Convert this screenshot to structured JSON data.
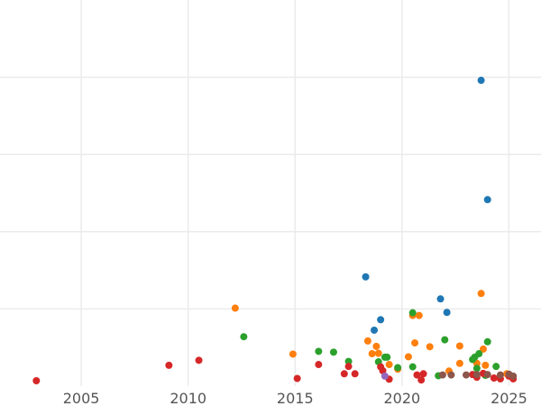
{
  "chart_data": {
    "type": "scatter",
    "title": "",
    "xlabel": "",
    "ylabel": "",
    "grid": true,
    "legend": "none",
    "xlim": [
      2001.2,
      2026.5
    ],
    "ylim": [
      0,
      100
    ],
    "x_ticks": [
      2005,
      2010,
      2015,
      2020,
      2025
    ],
    "x_tick_labels": [
      "2005",
      "2010",
      "2015",
      "2020",
      "2025"
    ],
    "y_gridlines": [
      20,
      40,
      60,
      80
    ],
    "series": [
      {
        "color": "#1f77b4",
        "points": [
          [
            2023.7,
            79.2
          ],
          [
            2024.0,
            48.3
          ],
          [
            2018.3,
            28.3
          ],
          [
            2021.8,
            22.6
          ],
          [
            2022.1,
            19.1
          ],
          [
            2019.0,
            17.2
          ],
          [
            2018.7,
            14.5
          ]
        ]
      },
      {
        "color": "#ff7f0e",
        "points": [
          [
            2012.2,
            20.2
          ],
          [
            2023.7,
            24.0
          ],
          [
            2020.5,
            18.3
          ],
          [
            2020.8,
            18.3
          ],
          [
            2018.4,
            11.7
          ],
          [
            2020.6,
            11.2
          ],
          [
            2021.3,
            10.2
          ],
          [
            2022.7,
            10.4
          ],
          [
            2023.8,
            9.6
          ],
          [
            2014.9,
            8.3
          ],
          [
            2018.8,
            10.3
          ],
          [
            2018.9,
            8.5
          ],
          [
            2020.3,
            7.6
          ],
          [
            2022.7,
            5.9
          ],
          [
            2023.5,
            5.9
          ],
          [
            2019.4,
            5.6
          ],
          [
            2023.9,
            5.4
          ],
          [
            2019.8,
            4.4
          ],
          [
            2022.2,
            3.9
          ],
          [
            2018.6,
            8.4
          ],
          [
            2024.9,
            3.2
          ]
        ]
      },
      {
        "color": "#2ca02c",
        "points": [
          [
            2012.6,
            12.8
          ],
          [
            2020.5,
            19.0
          ],
          [
            2022.0,
            12.0
          ],
          [
            2024.0,
            11.5
          ],
          [
            2016.1,
            9.0
          ],
          [
            2016.8,
            8.8
          ],
          [
            2017.5,
            6.4
          ],
          [
            2019.2,
            7.5
          ],
          [
            2019.3,
            7.5
          ],
          [
            2018.9,
            6.3
          ],
          [
            2023.4,
            7.5
          ],
          [
            2023.3,
            6.9
          ],
          [
            2023.6,
            8.4
          ],
          [
            2019.8,
            4.8
          ],
          [
            2020.5,
            5.0
          ],
          [
            2024.4,
            5.1
          ],
          [
            2023.5,
            4.6
          ],
          [
            2021.7,
            2.7
          ],
          [
            2023.9,
            2.8
          ]
        ]
      },
      {
        "color": "#d62728",
        "points": [
          [
            2002.9,
            1.4
          ],
          [
            2009.1,
            5.4
          ],
          [
            2010.5,
            6.7
          ],
          [
            2015.1,
            2.0
          ],
          [
            2016.1,
            5.6
          ],
          [
            2017.5,
            5.1
          ],
          [
            2017.3,
            3.2
          ],
          [
            2017.8,
            3.2
          ],
          [
            2019.0,
            5.0
          ],
          [
            2019.1,
            4.0
          ],
          [
            2019.4,
            1.8
          ],
          [
            2020.7,
            2.9
          ],
          [
            2021.0,
            3.2
          ],
          [
            2020.9,
            1.6
          ],
          [
            2023.3,
            3.0
          ],
          [
            2023.5,
            2.3
          ],
          [
            2023.8,
            3.3
          ],
          [
            2024.3,
            2.1
          ],
          [
            2024.6,
            1.9
          ],
          [
            2025.0,
            2.6
          ],
          [
            2025.2,
            1.9
          ]
        ]
      },
      {
        "color": "#9467bd",
        "points": [
          [
            2019.2,
            2.6
          ]
        ]
      },
      {
        "color": "#8c564b",
        "points": [
          [
            2021.9,
            2.9
          ],
          [
            2022.3,
            2.9
          ],
          [
            2023.0,
            2.9
          ],
          [
            2023.5,
            3.0
          ],
          [
            2024.0,
            3.0
          ],
          [
            2024.6,
            2.9
          ],
          [
            2025.0,
            3.1
          ],
          [
            2025.2,
            2.6
          ]
        ]
      }
    ]
  }
}
